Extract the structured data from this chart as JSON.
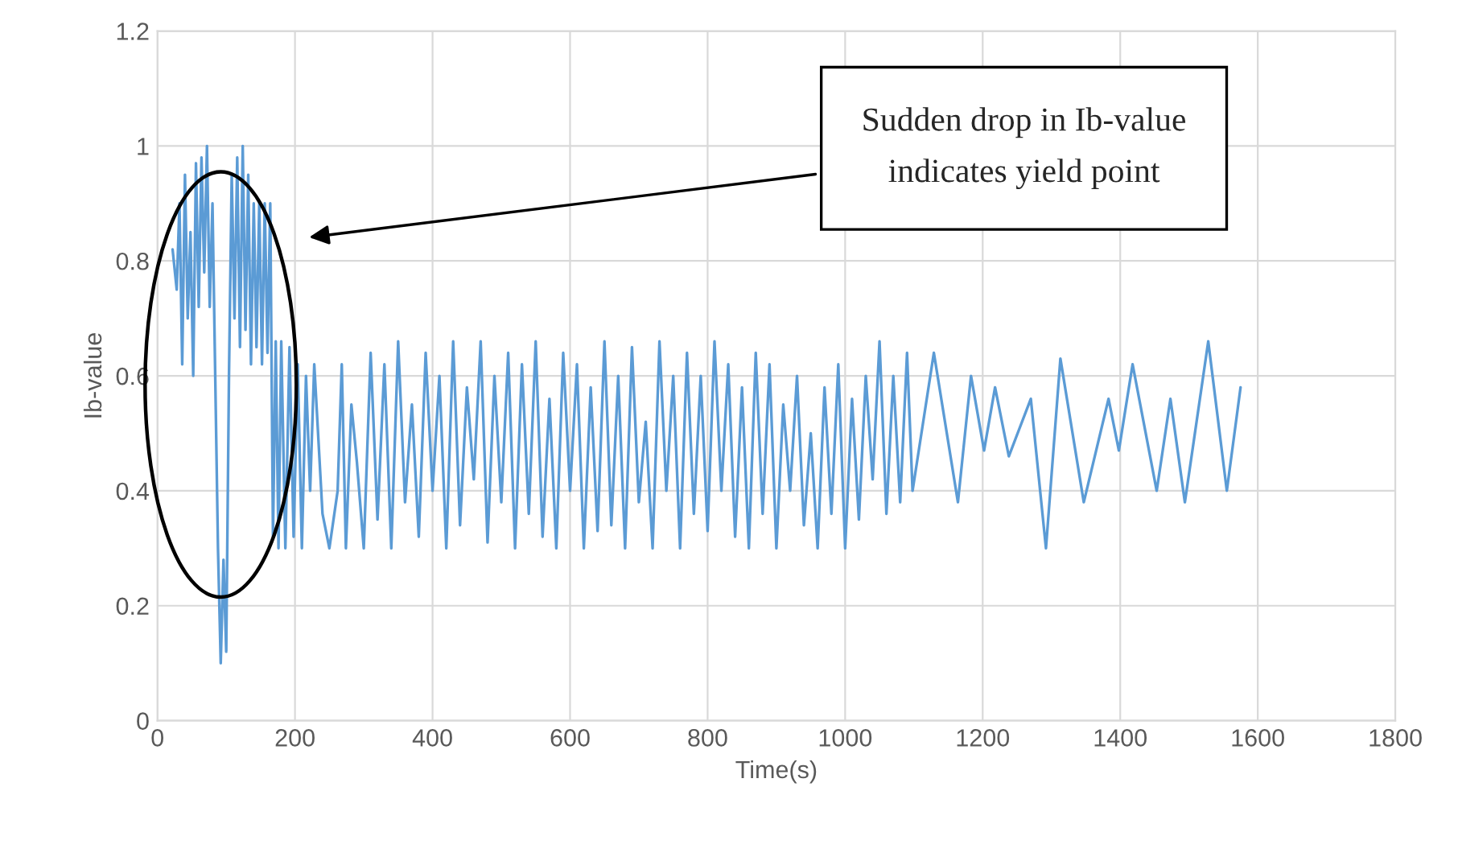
{
  "chart_data": {
    "type": "line",
    "xlabel": "Time(s)",
    "ylabel": "Ib-value",
    "x": [
      22,
      28,
      32,
      36,
      40,
      44,
      48,
      52,
      56,
      60,
      64,
      68,
      72,
      76,
      80,
      84,
      88,
      92,
      96,
      100,
      104,
      108,
      112,
      116,
      120,
      124,
      128,
      132,
      136,
      140,
      144,
      148,
      152,
      156,
      160,
      164,
      168,
      172,
      176,
      180,
      186,
      192,
      198,
      204,
      210,
      216,
      222,
      228,
      240,
      250,
      262,
      268,
      274,
      282,
      290,
      300,
      310,
      320,
      330,
      340,
      350,
      360,
      370,
      380,
      390,
      400,
      410,
      420,
      430,
      440,
      450,
      460,
      470,
      480,
      490,
      500,
      510,
      520,
      530,
      540,
      550,
      560,
      570,
      580,
      590,
      600,
      610,
      620,
      630,
      640,
      650,
      660,
      670,
      680,
      690,
      700,
      710,
      720,
      730,
      740,
      750,
      760,
      770,
      780,
      790,
      800,
      810,
      820,
      830,
      840,
      850,
      860,
      870,
      880,
      890,
      900,
      910,
      920,
      930,
      940,
      950,
      960,
      970,
      980,
      990,
      1000,
      1010,
      1020,
      1030,
      1040,
      1050,
      1060,
      1070,
      1080,
      1090,
      1098,
      1129,
      1164,
      1183,
      1202,
      1218,
      1238,
      1270,
      1292,
      1313,
      1347,
      1383,
      1398,
      1418,
      1453,
      1473,
      1494,
      1528,
      1555,
      1575
    ],
    "series": [
      {
        "color": "#5b9bd5",
        "values": [
          0.82,
          0.75,
          0.9,
          0.62,
          0.95,
          0.7,
          0.85,
          0.6,
          0.97,
          0.72,
          0.98,
          0.78,
          1.0,
          0.72,
          0.9,
          0.6,
          0.3,
          0.1,
          0.28,
          0.12,
          0.6,
          0.95,
          0.7,
          0.98,
          0.65,
          1.0,
          0.68,
          0.95,
          0.62,
          0.9,
          0.65,
          0.9,
          0.62,
          0.9,
          0.64,
          0.9,
          0.32,
          0.66,
          0.3,
          0.66,
          0.3,
          0.65,
          0.32,
          0.62,
          0.3,
          0.6,
          0.4,
          0.62,
          0.36,
          0.3,
          0.4,
          0.62,
          0.3,
          0.55,
          0.45,
          0.3,
          0.64,
          0.35,
          0.62,
          0.3,
          0.66,
          0.38,
          0.55,
          0.32,
          0.64,
          0.4,
          0.6,
          0.3,
          0.66,
          0.34,
          0.58,
          0.42,
          0.66,
          0.31,
          0.6,
          0.38,
          0.64,
          0.3,
          0.62,
          0.36,
          0.66,
          0.32,
          0.56,
          0.3,
          0.64,
          0.4,
          0.62,
          0.3,
          0.58,
          0.33,
          0.66,
          0.34,
          0.6,
          0.3,
          0.65,
          0.38,
          0.52,
          0.3,
          0.66,
          0.4,
          0.6,
          0.3,
          0.64,
          0.36,
          0.6,
          0.33,
          0.66,
          0.4,
          0.62,
          0.32,
          0.58,
          0.3,
          0.64,
          0.36,
          0.62,
          0.3,
          0.55,
          0.4,
          0.6,
          0.34,
          0.5,
          0.3,
          0.58,
          0.36,
          0.62,
          0.3,
          0.56,
          0.35,
          0.6,
          0.42,
          0.66,
          0.36,
          0.6,
          0.38,
          0.64,
          0.4,
          0.64,
          0.38,
          0.6,
          0.47,
          0.58,
          0.46,
          0.56,
          0.3,
          0.63,
          0.38,
          0.56,
          0.47,
          0.62,
          0.4,
          0.56,
          0.38,
          0.66,
          0.4,
          0.58
        ]
      }
    ],
    "xlim": [
      0,
      1800
    ],
    "xticks": [
      0,
      200,
      400,
      600,
      800,
      1000,
      1200,
      1400,
      1600,
      1800
    ],
    "ylim": [
      0,
      1.2
    ],
    "yticks": [
      0,
      0.2,
      0.4,
      0.6,
      0.8,
      1,
      1.2
    ],
    "grid": true,
    "marker": "none",
    "line_style": "solid",
    "annotations": [
      "Sudden drop in Ib-value\nindicates yield point"
    ]
  }
}
